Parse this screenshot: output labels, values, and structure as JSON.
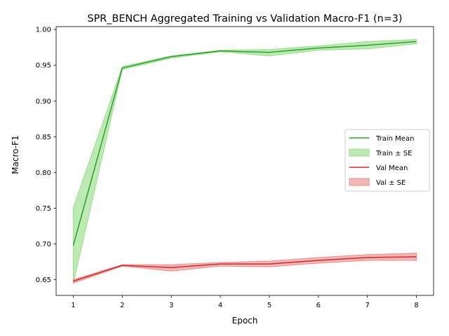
{
  "chart_data": {
    "type": "line",
    "title": "SPR_BENCH Aggregated Training vs Validation Macro-F1 (n=3)",
    "xlabel": "Epoch",
    "ylabel": "Macro-F1",
    "x": [
      1,
      2,
      3,
      4,
      5,
      6,
      7,
      8
    ],
    "xlim": [
      0.65,
      8.35
    ],
    "ylim": [
      0.628,
      1.004
    ],
    "xticks": [
      "1",
      "2",
      "3",
      "4",
      "5",
      "6",
      "7",
      "8"
    ],
    "yticks": [
      "0.65",
      "0.70",
      "0.75",
      "0.80",
      "0.85",
      "0.90",
      "0.95",
      "1.00"
    ],
    "grid": false,
    "legend_position": "center-right",
    "series": [
      {
        "name": "Train Mean",
        "band_name": "Train ± SE",
        "color": "#2ca02c",
        "band_color": "#98df8a",
        "mean": [
          0.698,
          0.946,
          0.962,
          0.97,
          0.968,
          0.974,
          0.978,
          0.983
        ],
        "lower": [
          0.645,
          0.944,
          0.96,
          0.969,
          0.963,
          0.971,
          0.973,
          0.98
        ],
        "upper": [
          0.751,
          0.948,
          0.963,
          0.971,
          0.972,
          0.977,
          0.983,
          0.986
        ]
      },
      {
        "name": "Val Mean",
        "band_name": "Val ± SE",
        "color": "#d62728",
        "band_color": "#e8918f",
        "mean": [
          0.648,
          0.67,
          0.667,
          0.672,
          0.672,
          0.677,
          0.681,
          0.682
        ],
        "lower": [
          0.645,
          0.669,
          0.662,
          0.669,
          0.668,
          0.673,
          0.677,
          0.677
        ],
        "upper": [
          0.65,
          0.671,
          0.671,
          0.674,
          0.676,
          0.681,
          0.685,
          0.687
        ]
      }
    ]
  }
}
